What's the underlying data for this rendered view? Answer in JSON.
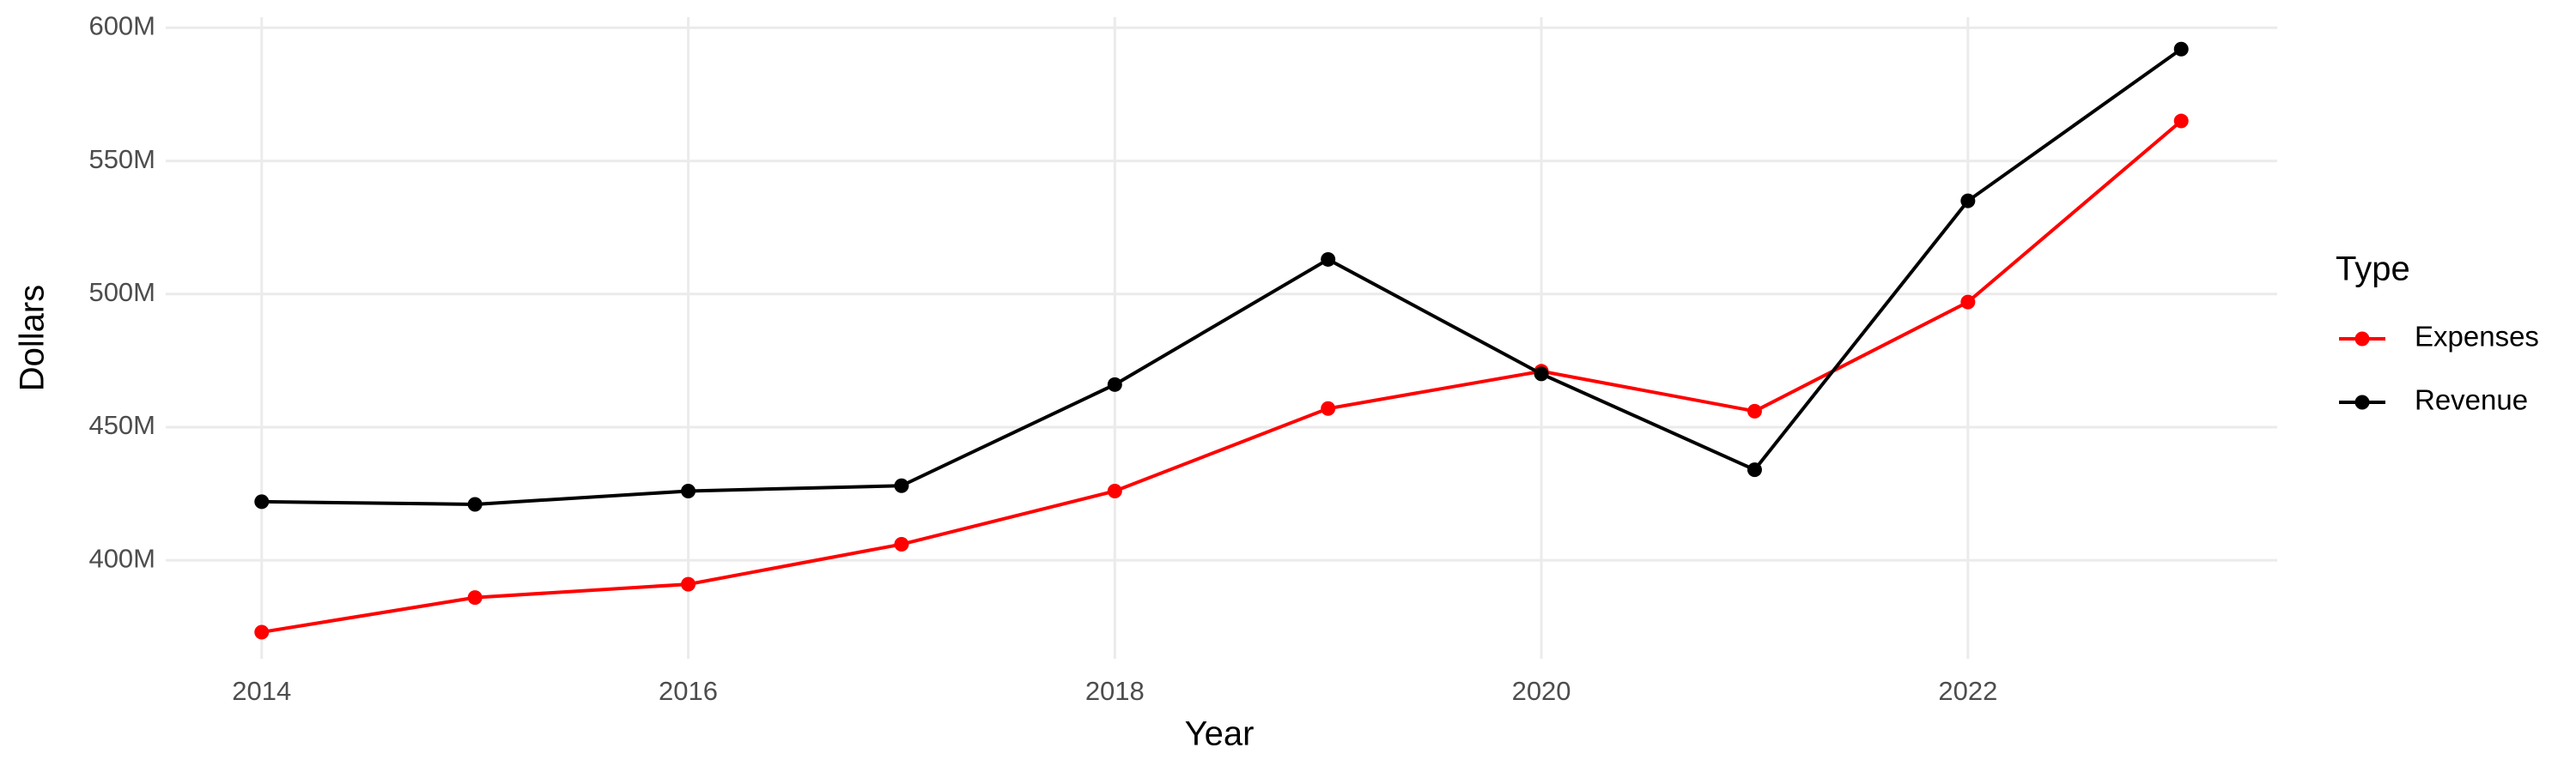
{
  "chart_data": {
    "type": "line",
    "x_label": "Year",
    "y_label": "Dollars",
    "legend_title": "Type",
    "x": [
      2014,
      2015,
      2016,
      2017,
      2018,
      2019,
      2020,
      2021,
      2022,
      2023
    ],
    "series": [
      {
        "name": "Expenses",
        "color": "#ff0000",
        "values": [
          373000000,
          386000000,
          391000000,
          406000000,
          426000000,
          457000000,
          471000000,
          456000000,
          497000000,
          565000000
        ]
      },
      {
        "name": "Revenue",
        "color": "#000000",
        "values": [
          422000000,
          421000000,
          426000000,
          428000000,
          466000000,
          513000000,
          470000000,
          434000000,
          535000000,
          592000000
        ]
      }
    ],
    "xlim": [
      2013.55,
      2023.45
    ],
    "xticks": [
      2014,
      2016,
      2018,
      2020,
      2022
    ],
    "ylim": [
      363000000,
      604000000
    ],
    "yticks": [
      {
        "value": 400000000,
        "label": "400M"
      },
      {
        "value": 450000000,
        "label": "450M"
      },
      {
        "value": 500000000,
        "label": "500M"
      },
      {
        "value": 550000000,
        "label": "550M"
      },
      {
        "value": 600000000,
        "label": "600M"
      }
    ],
    "grid": true,
    "legend": "right"
  }
}
